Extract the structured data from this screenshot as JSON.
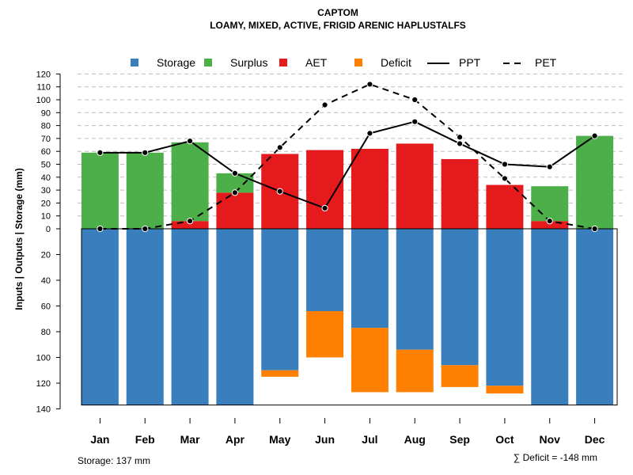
{
  "chart_data": {
    "type": "bar",
    "title": "CAPTOM",
    "subtitle": "LOAMY, MIXED, ACTIVE, FRIGID ARENIC HAPLUSTALFS",
    "ylabel": "Inputs | Outputs | Storage    (mm)",
    "categories": [
      "Jan",
      "Feb",
      "Mar",
      "Apr",
      "May",
      "Jun",
      "Jul",
      "Aug",
      "Sep",
      "Oct",
      "Nov",
      "Dec"
    ],
    "ylim_upper": [
      0,
      120
    ],
    "ylim_lower": [
      0,
      140
    ],
    "upper_ticks": [
      "0",
      "10",
      "20",
      "30",
      "40",
      "50",
      "60",
      "70",
      "80",
      "90",
      "100",
      "110",
      "120"
    ],
    "lower_ticks": [
      "20",
      "40",
      "60",
      "80",
      "100",
      "120",
      "140"
    ],
    "upper_tick_values": [
      0,
      10,
      20,
      30,
      40,
      50,
      60,
      70,
      80,
      90,
      100,
      110,
      120
    ],
    "lower_tick_values": [
      20,
      40,
      60,
      80,
      100,
      120,
      140
    ],
    "series": [
      {
        "name": "Storage",
        "color": "#3a7fbd",
        "values": [
          137,
          137,
          137,
          137,
          110,
          64,
          77,
          94,
          106,
          122,
          137,
          137
        ]
      },
      {
        "name": "Surplus",
        "color": "#4daf4a",
        "values": [
          59,
          59,
          61,
          15,
          0,
          0,
          0,
          0,
          0,
          0,
          27,
          72
        ]
      },
      {
        "name": "AET",
        "color": "#e41a1c",
        "values": [
          0,
          0,
          6,
          28,
          58,
          61,
          62,
          66,
          54,
          34,
          6,
          0
        ]
      },
      {
        "name": "Deficit",
        "color": "#ff7f00",
        "values": [
          0,
          0,
          0,
          0,
          5,
          36,
          50,
          33,
          17,
          6,
          0,
          0
        ]
      },
      {
        "name": "PPT",
        "color": "#000000",
        "line": "solid",
        "values": [
          59,
          59,
          68,
          43,
          29,
          16,
          74,
          83,
          66,
          50,
          48,
          72
        ]
      },
      {
        "name": "PET",
        "color": "#000000",
        "line": "dashed",
        "values": [
          0,
          0,
          6,
          28,
          63,
          96,
          112,
          100,
          71,
          39,
          6,
          0
        ]
      }
    ],
    "legend": [
      "Storage",
      "Surplus",
      "AET",
      "Deficit",
      "PPT",
      "PET"
    ],
    "storage_note": "Storage: 137 mm",
    "deficit_note": "∑ Deficit = -148 mm"
  }
}
